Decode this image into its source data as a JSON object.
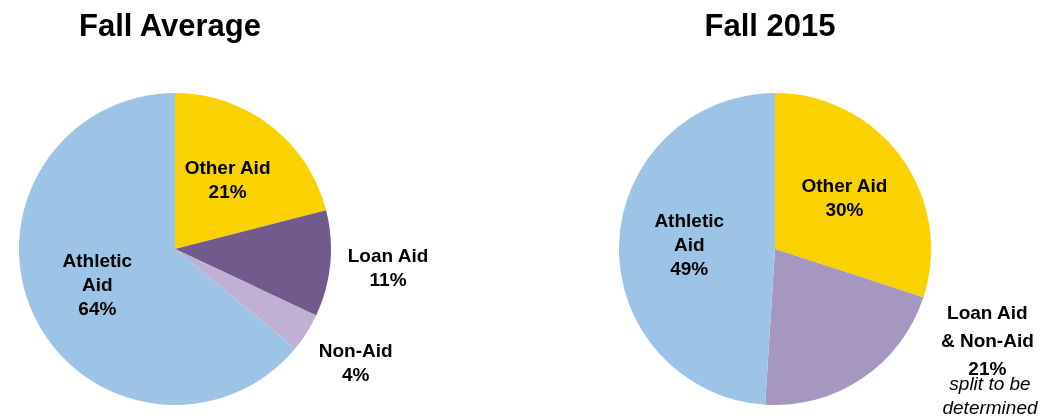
{
  "chart_data": [
    {
      "type": "pie",
      "title": "Fall Average",
      "categories": [
        "Other Aid",
        "Loan Aid",
        "Non-Aid",
        "Athletic Aid"
      ],
      "values": [
        21,
        11,
        4,
        64
      ],
      "value_labels": [
        "21%",
        "11%",
        "4%",
        "64%"
      ],
      "colors": [
        "#fad200",
        "#725a8c",
        "#bfb0d4",
        "#9dc3e6"
      ]
    },
    {
      "type": "pie",
      "title": "Fall 2015",
      "categories": [
        "Other Aid",
        "Loan Aid & Non-Aid",
        "Athletic Aid"
      ],
      "values": [
        30,
        21,
        49
      ],
      "value_labels": [
        "30%",
        "21%",
        "49%"
      ],
      "colors": [
        "#fad200",
        "#a697c0",
        "#9dc3e6"
      ],
      "annotations": [
        "split to be determined"
      ]
    }
  ]
}
